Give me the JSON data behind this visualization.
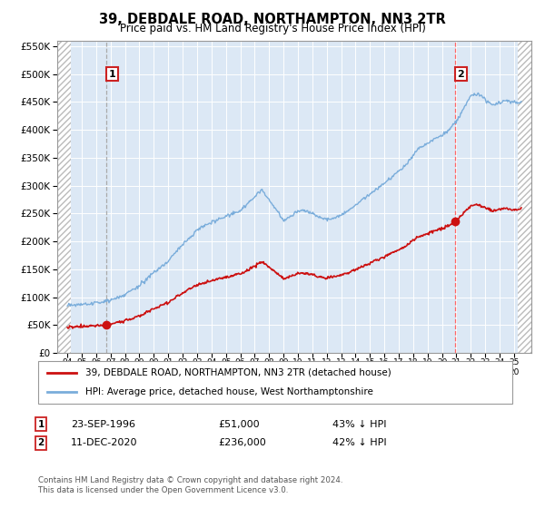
{
  "title": "39, DEBDALE ROAD, NORTHAMPTON, NN3 2TR",
  "subtitle": "Price paid vs. HM Land Registry's House Price Index (HPI)",
  "legend_line1": "39, DEBDALE ROAD, NORTHAMPTON, NN3 2TR (detached house)",
  "legend_line2": "HPI: Average price, detached house, West Northamptonshire",
  "annotation1_label": "1",
  "annotation1_date": "23-SEP-1996",
  "annotation1_price": "£51,000",
  "annotation1_hpi": "43% ↓ HPI",
  "annotation2_label": "2",
  "annotation2_date": "11-DEC-2020",
  "annotation2_price": "£236,000",
  "annotation2_hpi": "42% ↓ HPI",
  "footnote": "Contains HM Land Registry data © Crown copyright and database right 2024.\nThis data is licensed under the Open Government Licence v3.0.",
  "red_line_color": "#cc1111",
  "blue_line_color": "#7aaddb",
  "bg_plot_color": "#dce8f5",
  "hatch_color": "#bbbbbb",
  "vline1_color": "#aaaaaa",
  "vline2_color": "#ff6666",
  "point1_x": 1996.73,
  "point1_y": 51000,
  "point2_x": 2020.92,
  "point2_y": 236000,
  "ylim_min": 0,
  "ylim_max": 560000,
  "xlim_min": 1993.3,
  "xlim_max": 2026.2,
  "yticks": [
    0,
    50000,
    100000,
    150000,
    200000,
    250000,
    300000,
    350000,
    400000,
    450000,
    500000,
    550000
  ],
  "xticks": [
    1994,
    1995,
    1996,
    1997,
    1998,
    1999,
    2000,
    2001,
    2002,
    2003,
    2004,
    2005,
    2006,
    2007,
    2008,
    2009,
    2010,
    2011,
    2012,
    2013,
    2014,
    2015,
    2016,
    2017,
    2018,
    2019,
    2020,
    2021,
    2022,
    2023,
    2024,
    2025
  ]
}
